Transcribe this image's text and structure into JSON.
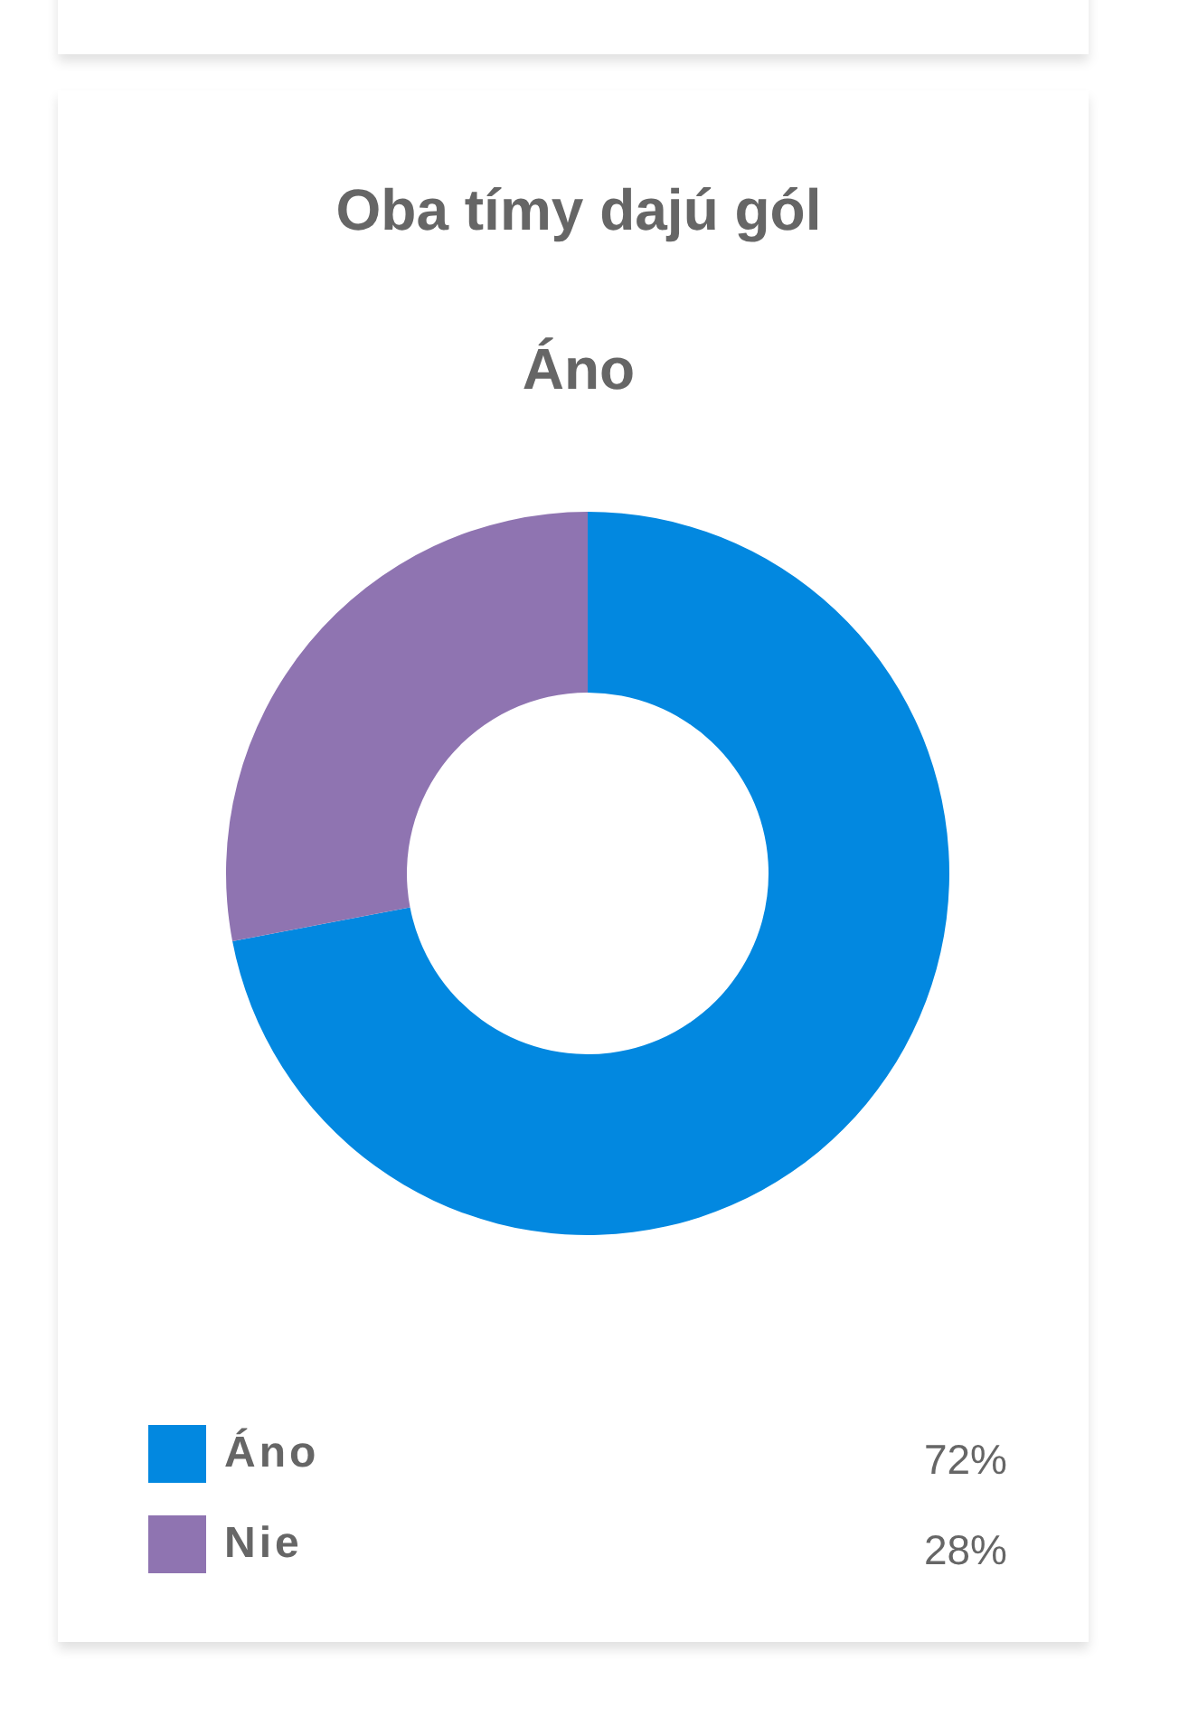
{
  "chart_data": {
    "type": "donut",
    "title": "Oba tímy dajú gól",
    "subtitle": "Áno",
    "categories": [
      "Áno",
      "Nie"
    ],
    "values": [
      72,
      28
    ],
    "colors": [
      "#0288e0",
      "#8f74b1"
    ],
    "value_labels": [
      "72%",
      "28%"
    ],
    "legend": "bottom"
  }
}
